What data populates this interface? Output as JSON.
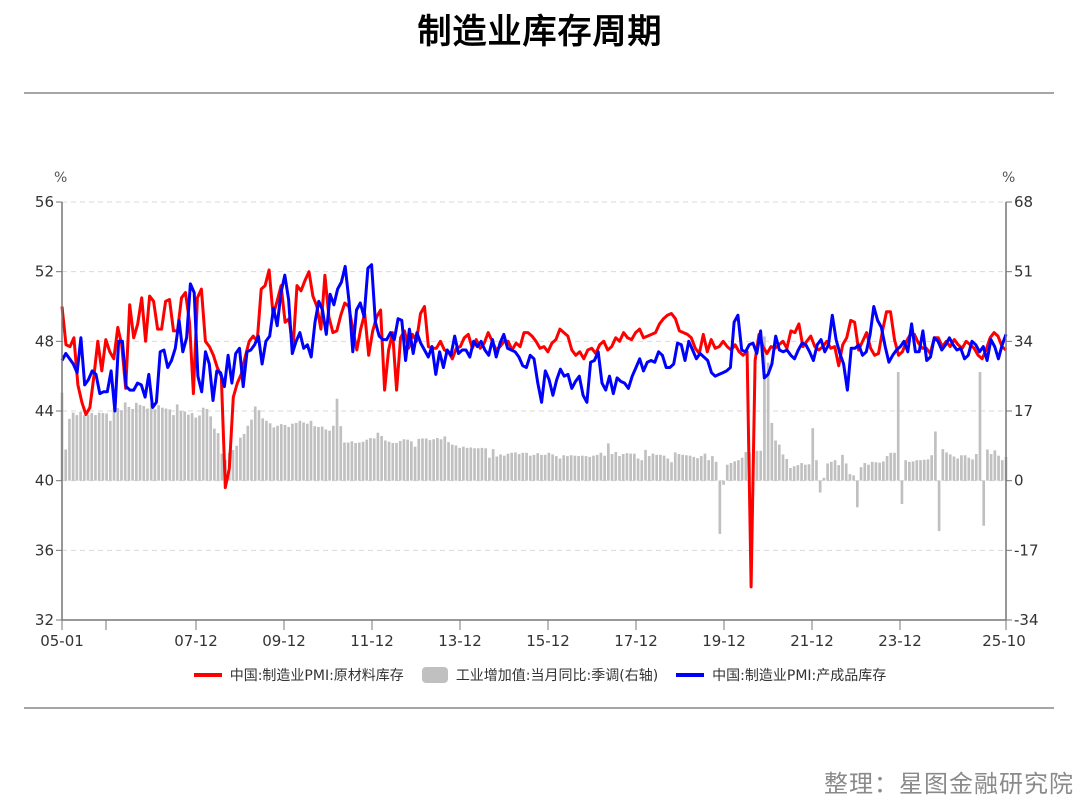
{
  "title": "制造业库存周期",
  "credit": "整理：星图金融研究院",
  "chart_data": {
    "type": "line+bar",
    "title": "制造业库存周期",
    "left_axis": {
      "unit": "%",
      "min": 32,
      "max": 56,
      "ticks": [
        56,
        52,
        48,
        44,
        40,
        36,
        32
      ]
    },
    "right_axis": {
      "unit": "%",
      "min": -34,
      "max": 68,
      "ticks": [
        68,
        51,
        34,
        17,
        0,
        -17,
        -34
      ]
    },
    "x_ticks": [
      "05-01",
      "07-12",
      "09-12",
      "11-12",
      "13-12",
      "15-12",
      "17-12",
      "19-12",
      "21-12",
      "23-12",
      "25-10"
    ],
    "x_start": "2005-01",
    "x_end": "2025-10",
    "grid": "dashed horizontal",
    "legend_position": "bottom",
    "colors": {
      "raw": "#ff0000",
      "finished": "#0000ff",
      "bars": "#c0c0c0"
    },
    "series": [
      {
        "name": "中国:制造业PMI:原材料库存",
        "axis": "left",
        "type": "line",
        "color": "#ff0000",
        "values": [
          50.0,
          47.8,
          47.7,
          48.2,
          45.5,
          44.5,
          43.8,
          44.2,
          46.0,
          48.0,
          46.3,
          48.1,
          47.4,
          47.0,
          48.8,
          47.8,
          45.3,
          50.1,
          48.2,
          49.0,
          50.5,
          48.0,
          50.6,
          50.3,
          48.7,
          48.7,
          50.3,
          50.4,
          48.6,
          48.6,
          50.5,
          50.8,
          49.1,
          45.0,
          50.5,
          51.0,
          48.0,
          47.7,
          47.2,
          46.5,
          46.0,
          39.6,
          40.7,
          44.8,
          45.6,
          46.1,
          47.1,
          48.0,
          48.3,
          48.0,
          51.0,
          51.2,
          52.1,
          49.5,
          50.3,
          51.2,
          49.1,
          49.3,
          47.6,
          51.2,
          50.9,
          51.5,
          52.0,
          50.6,
          50.0,
          48.7,
          51.8,
          49.4,
          48.5,
          48.6,
          49.5,
          50.2,
          50.0,
          48.7,
          47.5,
          48.7,
          49.6,
          47.2,
          48.6,
          49.4,
          49.8,
          45.2,
          47.5,
          48.5,
          45.2,
          48.2,
          48.6,
          47.6,
          48.4,
          48.0,
          49.6,
          50.0,
          47.7,
          47.6,
          47.6,
          48.0,
          47.5,
          47.4,
          47.0,
          47.6,
          47.7,
          48.2,
          48.4,
          47.6,
          48.1,
          47.6,
          47.9,
          48.5,
          48.0,
          47.5,
          47.7,
          48.0,
          48.0,
          47.5,
          47.9,
          47.7,
          48.5,
          48.5,
          48.3,
          48.0,
          47.6,
          47.7,
          47.4,
          47.9,
          48.1,
          48.7,
          48.5,
          48.3,
          47.5,
          47.2,
          47.4,
          47.0,
          47.5,
          47.6,
          47.3,
          47.8,
          48.0,
          47.5,
          47.7,
          48.2,
          48.0,
          48.5,
          48.2,
          48.1,
          48.5,
          48.7,
          48.2,
          48.3,
          48.4,
          48.5,
          49.0,
          49.3,
          49.5,
          49.6,
          49.3,
          48.6,
          48.5,
          48.4,
          48.2,
          47.6,
          47.3,
          48.4,
          47.4,
          48.1,
          47.6,
          47.7,
          48.0,
          47.7,
          47.5,
          47.8,
          47.4,
          47.2,
          47.4,
          33.9,
          46.9,
          48.4,
          47.7,
          47.3,
          47.7,
          47.6,
          47.8,
          48.0,
          47.6,
          48.6,
          48.5,
          49.0,
          47.7,
          48.0,
          48.3,
          47.7,
          47.5,
          47.7,
          48.0,
          47.6,
          47.7,
          46.6,
          47.8,
          48.2,
          49.2,
          49.1,
          47.5,
          48.0,
          48.5,
          47.6,
          47.2,
          47.3,
          48.6,
          49.7,
          49.7,
          48.1,
          47.2,
          47.4,
          48.0,
          48.4,
          48.4,
          47.9,
          47.6,
          47.6,
          47.3,
          48.2,
          48.2,
          47.7,
          48.0,
          47.7,
          48.1,
          47.8,
          47.6,
          48.0,
          47.8,
          47.6,
          47.2,
          47.0,
          47.5,
          48.2,
          48.5,
          48.3,
          47.7,
          47.5
        ]
      },
      {
        "name": "中国:制造业PMI:产成品库存",
        "axis": "left",
        "type": "line",
        "color": "#0000ff",
        "values": [
          46.9,
          47.3,
          47.0,
          46.7,
          46.2,
          48.2,
          45.5,
          45.8,
          46.3,
          46.1,
          45.0,
          45.1,
          45.1,
          46.3,
          44.0,
          48.0,
          48.0,
          45.4,
          45.2,
          45.2,
          45.6,
          45.5,
          44.8,
          46.1,
          44.2,
          44.5,
          47.4,
          47.5,
          46.5,
          46.9,
          47.6,
          49.2,
          47.4,
          48.2,
          51.3,
          50.8,
          46.0,
          45.1,
          47.4,
          46.7,
          44.6,
          46.3,
          46.2,
          45.4,
          47.2,
          45.6,
          47.3,
          47.6,
          45.4,
          47.4,
          47.5,
          47.8,
          48.3,
          46.7,
          48.0,
          48.3,
          49.9,
          48.9,
          50.8,
          51.8,
          50.4,
          47.3,
          48.0,
          48.5,
          47.6,
          47.8,
          47.1,
          49.1,
          50.3,
          49.8,
          48.4,
          50.7,
          50.1,
          51.0,
          51.4,
          52.3,
          50.3,
          47.4,
          49.8,
          50.2,
          49.4,
          52.2,
          52.4,
          49.1,
          48.3,
          48.1,
          48.1,
          48.5,
          48.1,
          49.3,
          49.2,
          46.9,
          48.7,
          47.3,
          48.5,
          47.9,
          47.5,
          47.1,
          47.7,
          46.1,
          47.4,
          46.5,
          47.5,
          47.2,
          48.3,
          47.3,
          47.5,
          47.5,
          47.1,
          48.0,
          47.7,
          48.0,
          47.5,
          47.2,
          48.1,
          47.1,
          47.9,
          48.4,
          47.6,
          47.5,
          47.4,
          47.1,
          46.6,
          46.5,
          47.2,
          47.0,
          45.6,
          44.5,
          46.3,
          45.8,
          44.9,
          45.8,
          46.4,
          46.0,
          46.1,
          45.3,
          45.7,
          46.0,
          44.9,
          44.5,
          46.8,
          46.9,
          47.4,
          45.6,
          45.2,
          46.0,
          45.0,
          45.9,
          45.7,
          45.6,
          45.3,
          46.0,
          46.5,
          47.0,
          46.3,
          46.8,
          46.9,
          46.8,
          47.4,
          47.2,
          46.5,
          46.5,
          46.7,
          47.9,
          47.8,
          46.9,
          48.0,
          47.5,
          47.0,
          47.3,
          47.1,
          46.9,
          46.2,
          46.0,
          46.1,
          46.2,
          46.3,
          46.5,
          49.1,
          49.5,
          47.5,
          47.4,
          47.8,
          47.9,
          47.3,
          48.6,
          45.9,
          46.1,
          46.7,
          48.3,
          47.5,
          47.4,
          47.5,
          47.2,
          47.0,
          47.5,
          47.9,
          47.8,
          47.4,
          46.9,
          47.8,
          48.1,
          47.4,
          47.8,
          49.5,
          48.1,
          47.3,
          46.7,
          45.2,
          47.6,
          47.6,
          47.8,
          47.2,
          47.4,
          48.4,
          50.0,
          49.2,
          48.8,
          47.7,
          46.8,
          47.2,
          47.5,
          47.7,
          48.0,
          47.4,
          49.0,
          47.4,
          47.4,
          48.6,
          46.9,
          47.1,
          48.2,
          48.0,
          47.5,
          47.8,
          48.2,
          47.8,
          47.5,
          47.6,
          47.0,
          47.2,
          48.0,
          47.8,
          47.4,
          47.7,
          46.9,
          48.1,
          47.7,
          47.0,
          47.8,
          48.4
        ]
      },
      {
        "name": "工业增加值:当月同比:季调(右轴)",
        "axis": "right",
        "type": "bar",
        "color": "#c0c0c0",
        "values": [
          21.5,
          7.6,
          15.1,
          16.6,
          16.0,
          16.8,
          16.0,
          16.1,
          16.5,
          16.0,
          16.6,
          16.5,
          16.4,
          14.6,
          17.8,
          17.7,
          17.2,
          19.1,
          18.0,
          17.5,
          19.0,
          18.5,
          18.2,
          17.6,
          18.9,
          17.4,
          18.4,
          17.8,
          17.6,
          17.4,
          16.0,
          18.6,
          17.0,
          16.9,
          16.1,
          16.5,
          15.4,
          15.9,
          17.8,
          17.5,
          15.7,
          12.7,
          11.6,
          6.6,
          5.1,
          6.8,
          7.5,
          8.5,
          10.5,
          11.4,
          13.4,
          14.9,
          18.1,
          17.2,
          15.2,
          14.6,
          14.0,
          13.0,
          13.4,
          13.8,
          13.6,
          13.1,
          13.9,
          14.1,
          14.6,
          14.2,
          13.9,
          14.6,
          13.3,
          13.1,
          13.2,
          12.5,
          12.2,
          13.4,
          20.0,
          13.3,
          9.3,
          9.3,
          9.6,
          9.2,
          9.3,
          9.5,
          10.0,
          10.4,
          10.3,
          11.7,
          10.9,
          9.8,
          9.5,
          9.2,
          9.2,
          9.7,
          10.1,
          10.0,
          9.6,
          8.3,
          10.2,
          10.3,
          10.3,
          9.9,
          10.1,
          10.4,
          10.1,
          10.8,
          9.4,
          8.8,
          8.6,
          8.0,
          8.3,
          8.0,
          8.1,
          7.9,
          7.9,
          8.0,
          7.9,
          5.6,
          7.7,
          5.9,
          6.4,
          6.1,
          6.6,
          6.8,
          6.9,
          6.5,
          6.8,
          6.8,
          6.1,
          6.3,
          6.7,
          6.3,
          6.3,
          6.8,
          6.4,
          6.0,
          5.4,
          6.2,
          6.0,
          6.2,
          6.1,
          6.0,
          6.1,
          6.0,
          5.8,
          6.1,
          6.3,
          6.8,
          6.1,
          9.1,
          6.5,
          7.0,
          6.0,
          6.5,
          6.7,
          6.6,
          6.6,
          5.4,
          5.0,
          7.5,
          6.0,
          6.6,
          6.3,
          6.3,
          6.1,
          5.4,
          4.5,
          6.9,
          6.5,
          6.3,
          6.2,
          6.1,
          5.8,
          5.5,
          6.0,
          6.6,
          5.0,
          6.0,
          4.6,
          -13.0,
          -1.0,
          3.9,
          4.3,
          4.7,
          5.0,
          5.6,
          7.0,
          6.9,
          6.9,
          7.3,
          7.3,
          35.2,
          28.8,
          14.1,
          9.8,
          8.8,
          6.4,
          5.3,
          3.1,
          3.5,
          3.8,
          4.3,
          3.9,
          4.0,
          12.8,
          5.0,
          -2.9,
          0.7,
          4.2,
          4.6,
          5.0,
          3.8,
          6.3,
          4.2,
          1.6,
          1.3,
          -6.5,
          3.3,
          4.3,
          3.9,
          4.6,
          4.5,
          4.4,
          4.7,
          6.0,
          6.8,
          6.8,
          26.5,
          -5.7,
          5.0,
          4.6,
          4.7,
          5.0,
          5.0,
          5.1,
          5.2,
          6.2,
          12.0,
          -12.3,
          7.7,
          6.9,
          6.4,
          5.9,
          5.4,
          6.2,
          6.2,
          5.6,
          5.2,
          6.5,
          26.5,
          -11.0,
          7.6,
          6.5,
          7.4,
          6.1,
          5.0,
          5.8
        ]
      }
    ]
  },
  "legend": [
    {
      "label": "中国:制造业PMI:原材料库存",
      "kind": "line",
      "color": "#ff0000"
    },
    {
      "label": "工业增加值:当月同比:季调(右轴)",
      "kind": "box",
      "color": "#c0c0c0"
    },
    {
      "label": "中国:制造业PMI:产成品库存",
      "kind": "line",
      "color": "#0000ff"
    }
  ]
}
